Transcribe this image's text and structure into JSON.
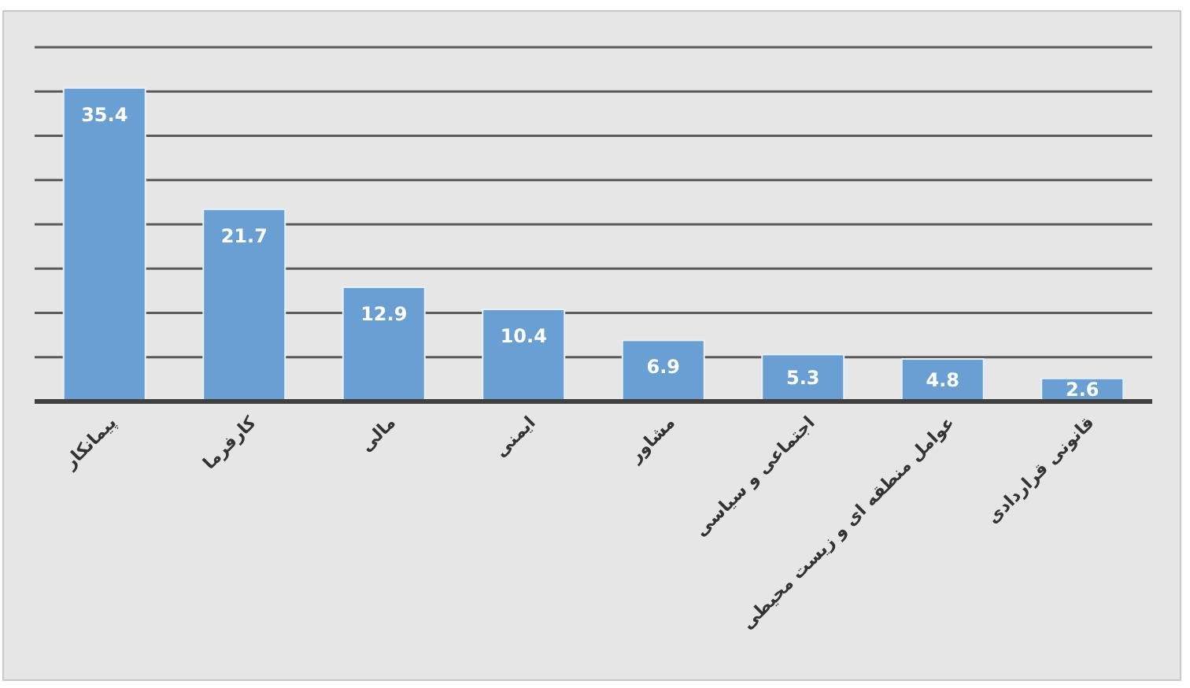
{
  "chart_data": {
    "type": "bar",
    "categories": [
      "پیمانکار",
      "کارفرما",
      "مالی",
      "ایمنی",
      "مشاور",
      "اجتماعی و سیاسی",
      "عوامل منطقه ای و زیست محیطی",
      "قانونی قراردادی"
    ],
    "values": [
      35.4,
      21.7,
      12.9,
      10.4,
      6.9,
      5.3,
      4.8,
      2.6
    ],
    "color": "#6a9fd4",
    "ylim": [
      0,
      40
    ],
    "yticks": [
      {
        "value": 0,
        "label": null
      },
      {
        "value": 5,
        "label": null
      },
      {
        "value": 10,
        "label": null
      },
      {
        "value": 15,
        "label": null
      },
      {
        "value": 20,
        "label": null
      },
      {
        "value": 25,
        "label": null
      },
      {
        "value": 30,
        "label": null
      },
      {
        "value": 35,
        "label": null
      },
      {
        "value": 40,
        "label": null
      }
    ],
    "grid": "y",
    "tick_labels": "x",
    "data_labels": true
  }
}
